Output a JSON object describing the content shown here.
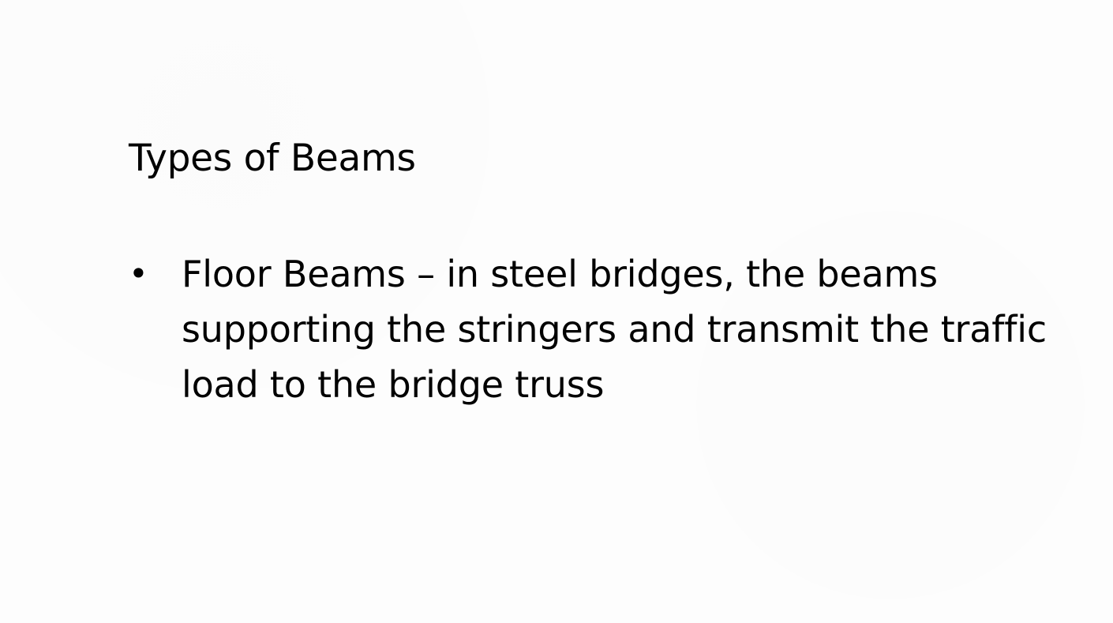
{
  "slide": {
    "title": "Types of Beams",
    "bullets": [
      {
        "marker": "•",
        "text": "Floor Beams – in steel bridges, the beams supporting the stringers and transmit the traffic load to the bridge truss"
      }
    ]
  }
}
